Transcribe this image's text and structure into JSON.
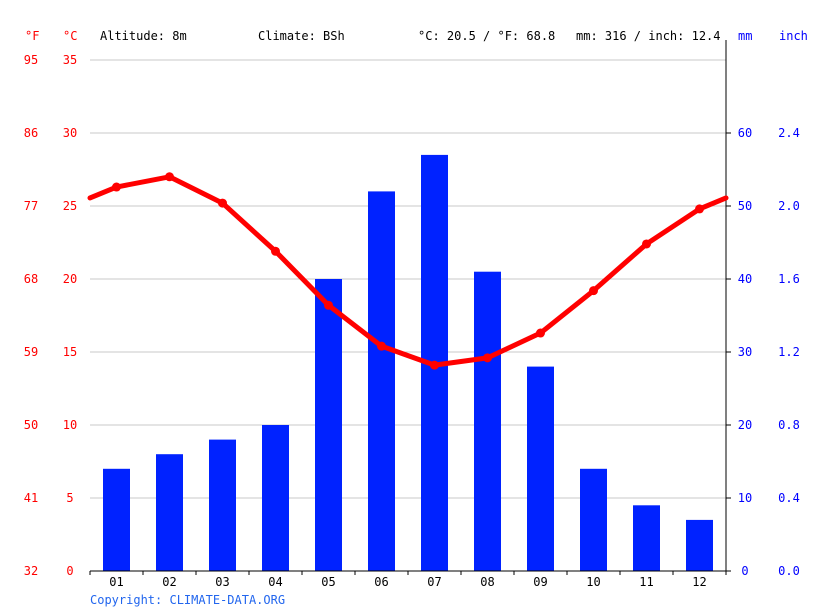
{
  "header": {
    "unit_f": "°F",
    "unit_c": "°C",
    "altitude": "Altitude: 8m",
    "climate": "Climate: BSh",
    "avg_temp": "°C: 20.5 / °F: 68.8",
    "precip_total": "mm: 316 / inch: 12.4",
    "unit_mm": "mm",
    "unit_inch": "inch"
  },
  "footer": {
    "copyright": "Copyright: CLIMATE-DATA.ORG"
  },
  "colors": {
    "temperature": "#ff0000",
    "precipitation": "#0022ff",
    "grid": "#c8c8c8"
  },
  "chart_data": {
    "type": "bar",
    "categories": [
      "01",
      "02",
      "03",
      "04",
      "05",
      "06",
      "07",
      "08",
      "09",
      "10",
      "11",
      "12"
    ],
    "series": [
      {
        "type": "bar",
        "axis": "right",
        "values": [
          14,
          16,
          18,
          20,
          40,
          52,
          57,
          41,
          28,
          14,
          9,
          7
        ]
      },
      {
        "type": "line",
        "axis": "left",
        "values": [
          26.3,
          27.0,
          25.2,
          21.9,
          18.2,
          15.4,
          14.1,
          14.6,
          16.3,
          19.2,
          22.4,
          24.8
        ]
      }
    ],
    "y_left_ticks_c": [
      "0",
      "5",
      "10",
      "15",
      "20",
      "25",
      "30",
      "35"
    ],
    "y_left_ticks_f": [
      "32",
      "41",
      "50",
      "59",
      "68",
      "77",
      "86",
      "95"
    ],
    "y_right_ticks_mm": [
      "0",
      "10",
      "20",
      "30",
      "40",
      "50",
      "60"
    ],
    "y_right_ticks_inch": [
      "0.0",
      "0.4",
      "0.8",
      "1.2",
      "1.6",
      "2.0",
      "2.4"
    ],
    "ylim_left": [
      0,
      35
    ],
    "ylim_right": [
      0,
      70
    ],
    "grid": true
  }
}
